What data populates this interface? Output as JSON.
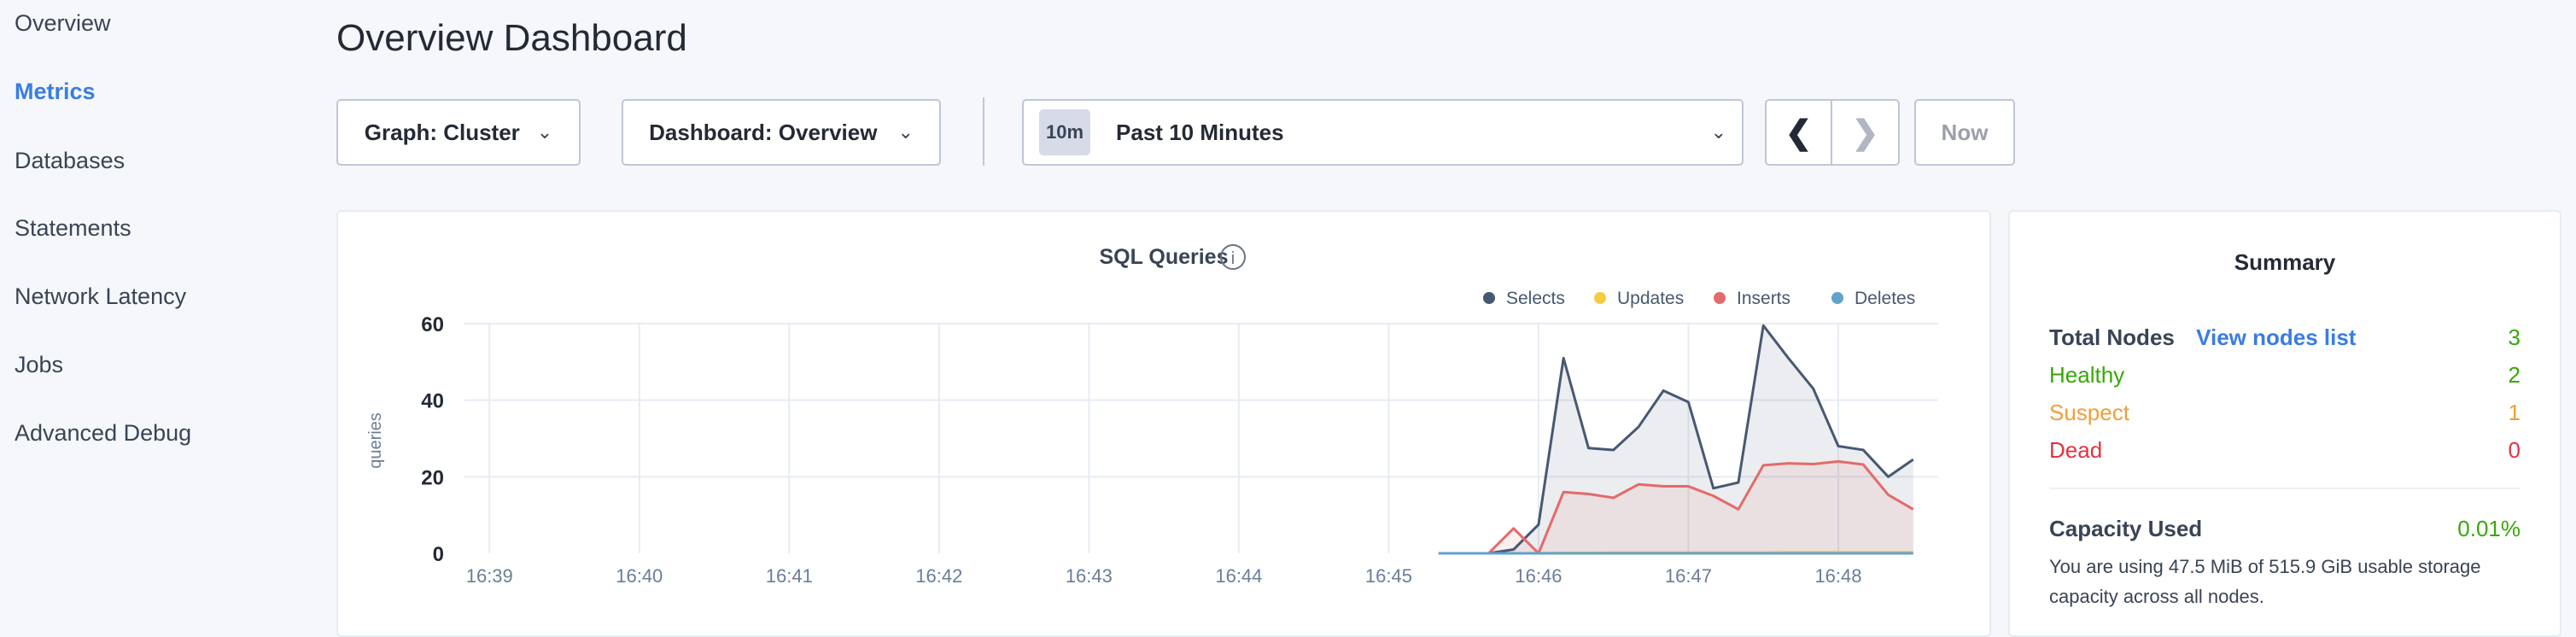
{
  "sidebar": {
    "items": [
      {
        "label": "Overview",
        "active": false
      },
      {
        "label": "Metrics",
        "active": true
      },
      {
        "label": "Databases",
        "active": false
      },
      {
        "label": "Statements",
        "active": false
      },
      {
        "label": "Network Latency",
        "active": false
      },
      {
        "label": "Jobs",
        "active": false
      },
      {
        "label": "Advanced Debug",
        "active": false
      }
    ]
  },
  "header": {
    "title": "Overview Dashboard"
  },
  "toolbar": {
    "graph_select": "Graph: Cluster",
    "dashboard_select": "Dashboard: Overview",
    "time_badge": "10m",
    "time_range": "Past 10 Minutes",
    "now_label": "Now"
  },
  "colors": {
    "accent": "#3a7de1",
    "healthy": "#37a806",
    "suspect": "#f29e38",
    "dead": "#e5323f"
  },
  "summary": {
    "title": "Summary",
    "total_nodes_label": "Total Nodes",
    "view_nodes_link": "View nodes list",
    "total_nodes": "3",
    "healthy_label": "Healthy",
    "healthy": "2",
    "suspect_label": "Suspect",
    "suspect": "1",
    "dead_label": "Dead",
    "dead": "0",
    "capacity_label": "Capacity Used",
    "capacity_value": "0.01%",
    "capacity_text": "You are using 47.5 MiB of 515.9 GiB usable storage capacity across all nodes."
  },
  "chart_data": {
    "type": "area",
    "title": "SQL Queries",
    "ylabel": "queries",
    "xlabel": "",
    "ylim": [
      0,
      60
    ],
    "yticks": [
      "0",
      "20",
      "40",
      "60"
    ],
    "xticks": [
      "16:39",
      "16:40",
      "16:41",
      "16:42",
      "16:43",
      "16:44",
      "16:45",
      "16:46",
      "16:47",
      "16:48"
    ],
    "xlim": [
      "16:38:50",
      "16:48:40"
    ],
    "grid": true,
    "legend": "top-right",
    "x": [
      "16:45:20",
      "16:45:30",
      "16:45:40",
      "16:45:50",
      "16:46:00",
      "16:46:10",
      "16:46:20",
      "16:46:30",
      "16:46:40",
      "16:46:50",
      "16:47:00",
      "16:47:10",
      "16:47:20",
      "16:47:30",
      "16:47:40",
      "16:47:50",
      "16:48:00",
      "16:48:10",
      "16:48:20",
      "16:48:30"
    ],
    "series": [
      {
        "name": "Selects",
        "color": "#475872",
        "values": [
          0,
          0,
          0,
          1,
          7.5,
          51,
          27.5,
          27,
          33,
          42.5,
          39.5,
          17,
          18.5,
          59.5,
          51,
          43,
          28,
          27,
          20,
          24.5
        ]
      },
      {
        "name": "Updates",
        "color": "#f6cb44",
        "values": [
          0,
          0,
          0,
          0,
          0,
          0.1,
          0.1,
          0.2,
          0.2,
          0.2,
          0.2,
          0.2,
          0.2,
          0.2,
          0.3,
          0.3,
          0.3,
          0.3,
          0.3,
          0.3
        ]
      },
      {
        "name": "Inserts",
        "color": "#e36b6a",
        "values": [
          0,
          0,
          0,
          6.5,
          0,
          16,
          15.5,
          14.5,
          18,
          17.5,
          17.5,
          15,
          11.5,
          23,
          23.5,
          23.3,
          24,
          23.2,
          15.3,
          11.5
        ]
      },
      {
        "name": "Deletes",
        "color": "#62a0cd",
        "values": [
          0,
          0,
          0,
          0,
          0,
          0,
          0,
          0,
          0,
          0,
          0,
          0,
          0,
          0,
          0,
          0,
          0,
          0,
          0,
          0
        ]
      }
    ]
  }
}
